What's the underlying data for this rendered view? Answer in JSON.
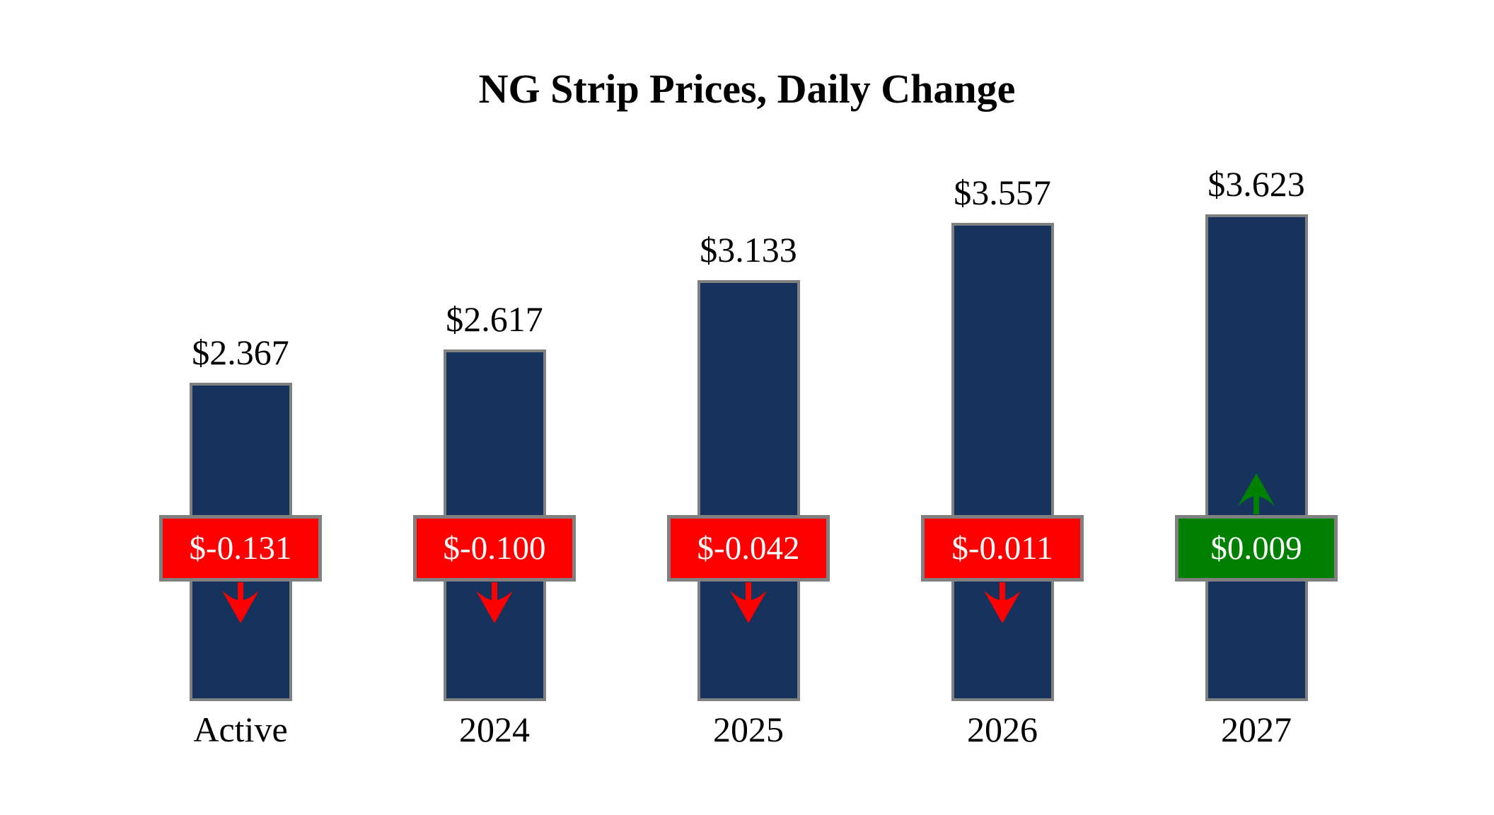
{
  "title": "NG Strip Prices, Daily Change",
  "chart_data": {
    "type": "bar",
    "title": "NG Strip Prices, Daily Change",
    "categories": [
      "Active",
      "2024",
      "2025",
      "2026",
      "2027"
    ],
    "values": [
      2.367,
      2.617,
      3.133,
      3.557,
      3.623
    ],
    "value_labels": [
      "$2.367",
      "$2.617",
      "$3.133",
      "$3.557",
      "$3.623"
    ],
    "daily_changes": [
      -0.131,
      -0.1,
      -0.042,
      -0.011,
      0.009
    ],
    "change_labels": [
      "$-0.131",
      "$-0.100",
      "$-0.042",
      "$-0.011",
      "$0.009"
    ],
    "change_directions": [
      "down",
      "down",
      "down",
      "down",
      "up"
    ],
    "ylim": [
      0,
      3.623
    ],
    "grid": false,
    "legend": "none",
    "colors": {
      "bar_fill": "#16335D",
      "bar_border": "#808080",
      "negative_badge": "#FF0000",
      "positive_badge": "#008000",
      "badge_border": "#808080",
      "badge_text": "#FFFFFF",
      "down_arrow": "#FF0000",
      "up_arrow": "#008000",
      "label_text": "#000000",
      "background": "#FFFFFF"
    }
  }
}
